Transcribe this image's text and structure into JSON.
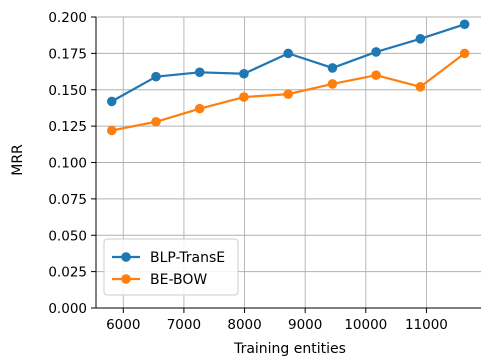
{
  "chart_data": {
    "type": "line",
    "xlabel": "Training entities",
    "ylabel": "MRR",
    "xlim": [
      5550,
      11900
    ],
    "ylim": [
      0,
      0.2
    ],
    "xticks": [
      6000,
      7000,
      8000,
      9000,
      10000,
      11000
    ],
    "xtick_labels": [
      "6000",
      "7000",
      "8000",
      "9000",
      "10000",
      "11000"
    ],
    "yticks": [
      0,
      0.025,
      0.05,
      0.075,
      0.1,
      0.125,
      0.15,
      0.175,
      0.2
    ],
    "ytick_labels": [
      "0.000",
      "0.025",
      "0.050",
      "0.075",
      "0.100",
      "0.125",
      "0.150",
      "0.175",
      "0.200"
    ],
    "grid": true,
    "legend_position": "lower-left",
    "series": [
      {
        "name": "BLP-TransE",
        "color": "#1f77b4",
        "x": [
          5810,
          6540,
          7260,
          7990,
          8720,
          9450,
          10170,
          10900,
          11630
        ],
        "y": [
          0.142,
          0.159,
          0.162,
          0.161,
          0.175,
          0.165,
          0.176,
          0.185,
          0.195
        ]
      },
      {
        "name": "BE-BOW",
        "color": "#ff7f0e",
        "x": [
          5810,
          6540,
          7260,
          7990,
          8720,
          9450,
          10170,
          10900,
          11630
        ],
        "y": [
          0.122,
          0.128,
          0.137,
          0.145,
          0.147,
          0.154,
          0.16,
          0.152,
          0.175
        ]
      }
    ]
  }
}
